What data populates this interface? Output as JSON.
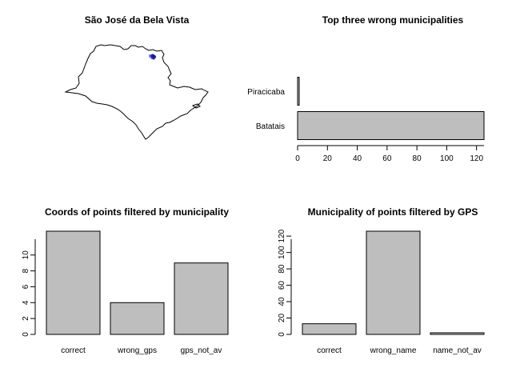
{
  "chart_data": [
    {
      "type": "map",
      "title": "São José da Bela Vista",
      "colors": {
        "outline": "#000000",
        "points": "#1a1aa6",
        "points_light": "#6f6fd6"
      }
    },
    {
      "type": "bar",
      "orientation": "horizontal",
      "title": "Top three wrong municipalities",
      "categories": [
        "Batatais",
        "Piracicaba"
      ],
      "values": [
        125,
        1
      ],
      "xlim": [
        0,
        125
      ],
      "xticks": [
        "0",
        "20",
        "40",
        "60",
        "80",
        "100",
        "120"
      ],
      "colors": {
        "bar": "#bebebe",
        "border": "#000000"
      }
    },
    {
      "type": "bar",
      "title": "Coords of points filtered by municipality",
      "categories": [
        "correct",
        "wrong_gps",
        "gps_not_av"
      ],
      "values": [
        13,
        4,
        9
      ],
      "ylim": [
        0,
        13
      ],
      "yticks": [
        "0",
        "2",
        "4",
        "6",
        "8",
        "10"
      ],
      "colors": {
        "bar": "#bebebe",
        "border": "#000000"
      }
    },
    {
      "type": "bar",
      "title": "Municipality of points filtered by GPS",
      "categories": [
        "correct",
        "wrong_name",
        "name_not_av"
      ],
      "values": [
        13,
        126,
        2
      ],
      "ylim": [
        0,
        126
      ],
      "yticks": [
        "0",
        "20",
        "40",
        "60",
        "80",
        "100",
        "120"
      ],
      "colors": {
        "bar": "#bebebe",
        "border": "#000000"
      }
    }
  ]
}
